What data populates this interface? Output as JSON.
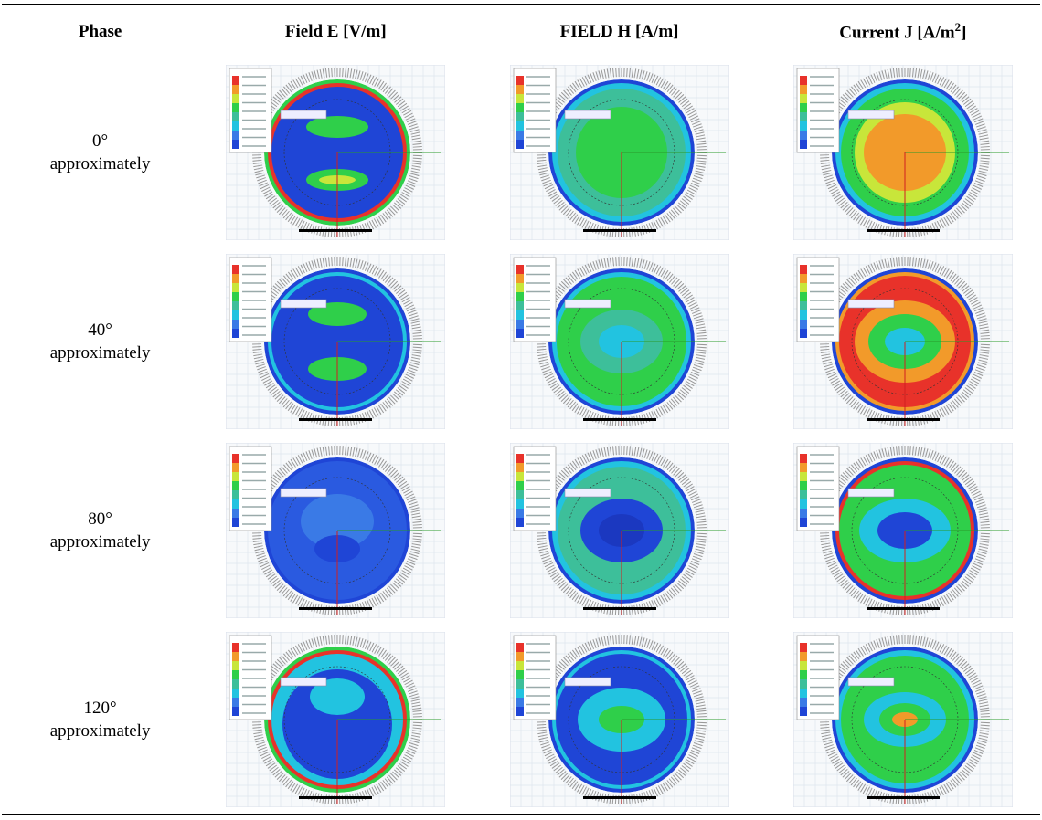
{
  "header": {
    "columns": [
      "Phase",
      "Field E [V/m]",
      "FIELD H [A/m]",
      [
        "Current J [A/m",
        "2",
        "]"
      ]
    ]
  },
  "table": {
    "rows": [
      [
        "0°",
        "approximately"
      ],
      [
        "40°",
        "approximately"
      ],
      [
        "80°",
        "approximately"
      ],
      [
        "120°",
        "approximately"
      ]
    ]
  }
}
